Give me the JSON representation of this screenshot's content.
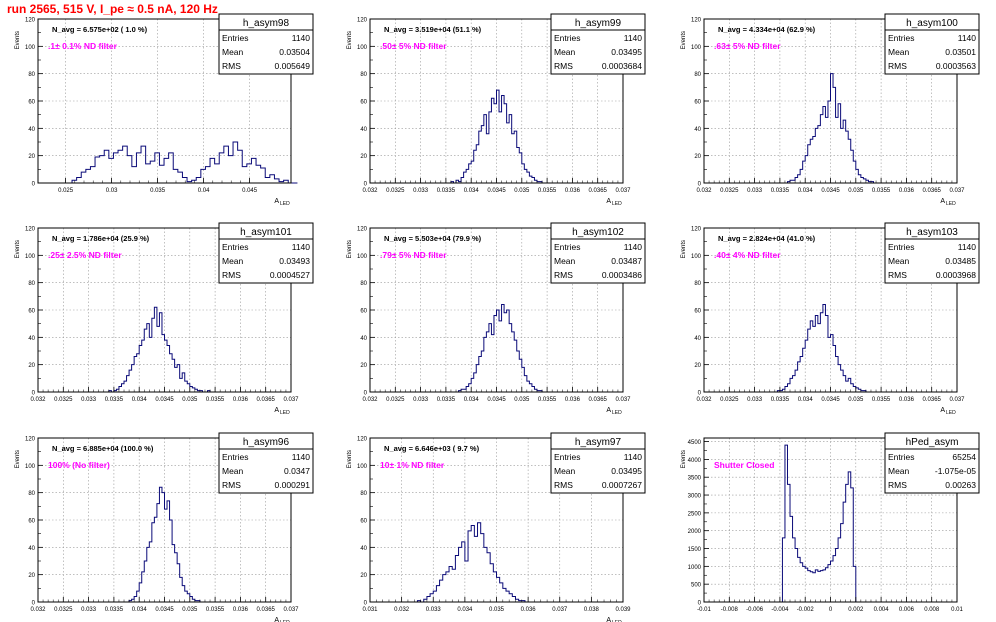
{
  "page_title": "run 2565,   515 V, I_pe ≈ 0.5 nA, 120 Hz",
  "colors": {
    "histogram_line": "#0a0a78",
    "annotation": "#ff00ff",
    "title_red": "#ff0000",
    "grid": "#999999",
    "frame": "#000000"
  },
  "chart_data": [
    {
      "type": "bar",
      "name": "h_asym98",
      "navg": "N_avg = 6.575e+02 ( 1.0 %)",
      "note": ".1± 0.1% ND filter",
      "stats": {
        "entries_label": "Entries",
        "entries": "1140",
        "mean_label": "Mean",
        "mean": "0.03504",
        "rms_label": "RMS",
        "rms": "0.005649"
      },
      "xlabel": "A",
      "xlabel_sub": "LED",
      "ylabel": "Events",
      "xlim": [
        0.022,
        0.0495
      ],
      "ylim": [
        0,
        120
      ],
      "xticks": [
        0.025,
        0.03,
        0.035,
        0.04,
        0.045
      ],
      "xtick_labels": [
        "0.025",
        "0.03",
        "0.035",
        "0.04",
        "0.045"
      ],
      "yticks": [
        0,
        20,
        40,
        60,
        80,
        100,
        120
      ],
      "ytick_labels": [
        "0",
        "20",
        "40",
        "60",
        "80",
        "100",
        "120"
      ],
      "bin_start": 0.0227,
      "bin_width": 0.0005,
      "values": [
        0,
        0,
        0,
        0,
        0,
        0,
        2,
        4,
        8,
        10,
        12,
        19,
        20,
        24,
        18,
        22,
        24,
        27,
        20,
        12,
        22,
        27,
        14,
        16,
        22,
        13,
        18,
        22,
        10,
        8,
        4,
        1,
        2,
        4,
        10,
        12,
        18,
        14,
        22,
        27,
        20,
        30,
        24,
        12,
        14,
        18,
        13,
        11,
        4,
        6,
        3,
        1,
        2,
        0,
        0
      ]
    },
    {
      "type": "bar",
      "name": "h_asym99",
      "navg": "N_avg = 3.519e+04 (51.1 %)",
      "note": ".50± 5% ND filter",
      "stats": {
        "entries_label": "Entries",
        "entries": "1140",
        "mean_label": "Mean",
        "mean": "0.03495",
        "rms_label": "RMS",
        "rms": "0.0003684"
      },
      "xlabel": "A",
      "xlabel_sub": "LED",
      "ylabel": "Events",
      "xlim": [
        0.032,
        0.037
      ],
      "ylim": [
        0,
        120
      ],
      "xticks": [
        0.032,
        0.0325,
        0.033,
        0.0335,
        0.034,
        0.0345,
        0.035,
        0.0355,
        0.036,
        0.0365,
        0.037
      ],
      "xtick_labels": [
        "0.032",
        "0.0325",
        "0.033",
        "0.0335",
        "0.034",
        "0.0345",
        "0.035",
        "0.0355",
        "0.036",
        "0.0365",
        "0.037"
      ],
      "yticks": [
        0,
        20,
        40,
        60,
        80,
        100,
        120
      ],
      "ytick_labels": [
        "0",
        "20",
        "40",
        "60",
        "80",
        "100",
        "120"
      ],
      "bin_start": 0.0336,
      "bin_width": 5e-05,
      "values": [
        1,
        0,
        2,
        1,
        4,
        8,
        10,
        14,
        16,
        24,
        28,
        38,
        42,
        50,
        36,
        52,
        62,
        58,
        68,
        52,
        64,
        58,
        44,
        50,
        36,
        38,
        26,
        22,
        14,
        10,
        8,
        5,
        4,
        2,
        1,
        1,
        0
      ]
    },
    {
      "type": "bar",
      "name": "h_asym100",
      "navg": "N_avg = 4.334e+04 (62.9 %)",
      "note": ".63± 5% ND filter",
      "stats": {
        "entries_label": "Entries",
        "entries": "1140",
        "mean_label": "Mean",
        "mean": "0.03501",
        "rms_label": "RMS",
        "rms": "0.0003563"
      },
      "xlabel": "A",
      "xlabel_sub": "LED",
      "ylabel": "Events",
      "xlim": [
        0.032,
        0.037
      ],
      "ylim": [
        0,
        120
      ],
      "xticks": [
        0.032,
        0.0325,
        0.033,
        0.0335,
        0.034,
        0.0345,
        0.035,
        0.0355,
        0.036,
        0.0365,
        0.037
      ],
      "xtick_labels": [
        "0.032",
        "0.0325",
        "0.033",
        "0.0335",
        "0.034",
        "0.0345",
        "0.035",
        "0.0355",
        "0.036",
        "0.0365",
        "0.037"
      ],
      "yticks": [
        0,
        20,
        40,
        60,
        80,
        100,
        120
      ],
      "ytick_labels": [
        "0",
        "20",
        "40",
        "60",
        "80",
        "100",
        "120"
      ],
      "bin_start": 0.0336,
      "bin_width": 5e-05,
      "values": [
        0,
        1,
        2,
        2,
        4,
        6,
        10,
        16,
        20,
        28,
        32,
        34,
        40,
        42,
        50,
        56,
        48,
        60,
        80,
        70,
        48,
        58,
        40,
        46,
        38,
        32,
        24,
        16,
        10,
        6,
        4,
        3,
        2,
        1,
        1,
        0,
        0
      ]
    },
    {
      "type": "bar",
      "name": "h_asym101",
      "navg": "N_avg = 1.786e+04 (25.9 %)",
      "note": ".25± 2.5% ND filter",
      "stats": {
        "entries_label": "Entries",
        "entries": "1140",
        "mean_label": "Mean",
        "mean": "0.03493",
        "rms_label": "RMS",
        "rms": "0.0004527"
      },
      "xlabel": "A",
      "xlabel_sub": "LED",
      "ylabel": "Events",
      "xlim": [
        0.032,
        0.037
      ],
      "ylim": [
        0,
        120
      ],
      "xticks": [
        0.032,
        0.0325,
        0.033,
        0.0335,
        0.034,
        0.0345,
        0.035,
        0.0355,
        0.036,
        0.0365,
        0.037
      ],
      "xtick_labels": [
        "0.032",
        "0.0325",
        "0.033",
        "0.0335",
        "0.034",
        "0.0345",
        "0.035",
        "0.0355",
        "0.036",
        "0.0365",
        "0.037"
      ],
      "yticks": [
        0,
        20,
        40,
        60,
        80,
        100,
        120
      ],
      "ytick_labels": [
        "0",
        "20",
        "40",
        "60",
        "80",
        "100",
        "120"
      ],
      "bin_start": 0.0334,
      "bin_width": 5e-05,
      "values": [
        1,
        0,
        1,
        2,
        4,
        6,
        8,
        12,
        16,
        20,
        26,
        28,
        34,
        38,
        46,
        50,
        40,
        54,
        62,
        48,
        58,
        42,
        38,
        34,
        28,
        24,
        18,
        20,
        10,
        14,
        8,
        6,
        4,
        3,
        2,
        1,
        1,
        0,
        0,
        1,
        0
      ]
    },
    {
      "type": "bar",
      "name": "h_asym102",
      "navg": "N_avg = 5.503e+04 (79.9 %)",
      "note": ".79± 5% ND filter",
      "stats": {
        "entries_label": "Entries",
        "entries": "1140",
        "mean_label": "Mean",
        "mean": "0.03487",
        "rms_label": "RMS",
        "rms": "0.0003486"
      },
      "xlabel": "A",
      "xlabel_sub": "LED",
      "ylabel": "Events",
      "xlim": [
        0.032,
        0.037
      ],
      "ylim": [
        0,
        120
      ],
      "xticks": [
        0.032,
        0.0325,
        0.033,
        0.0335,
        0.034,
        0.0345,
        0.035,
        0.0355,
        0.036,
        0.0365,
        0.037
      ],
      "xtick_labels": [
        "0.032",
        "0.0325",
        "0.033",
        "0.0335",
        "0.034",
        "0.0345",
        "0.035",
        "0.0355",
        "0.036",
        "0.0365",
        "0.037"
      ],
      "yticks": [
        0,
        20,
        40,
        60,
        80,
        100,
        120
      ],
      "ytick_labels": [
        "0",
        "20",
        "40",
        "60",
        "80",
        "100",
        "120"
      ],
      "bin_start": 0.0337,
      "bin_width": 5e-05,
      "values": [
        0,
        1,
        2,
        2,
        4,
        6,
        10,
        14,
        20,
        26,
        30,
        40,
        44,
        50,
        42,
        56,
        60,
        52,
        64,
        58,
        60,
        50,
        44,
        38,
        30,
        24,
        18,
        12,
        8,
        6,
        4,
        2,
        1,
        1,
        0,
        0
      ]
    },
    {
      "type": "bar",
      "name": "h_asym103",
      "navg": "N_avg = 2.824e+04 (41.0 %)",
      "note": ".40± 4% ND filter",
      "stats": {
        "entries_label": "Entries",
        "entries": "1140",
        "mean_label": "Mean",
        "mean": "0.03485",
        "rms_label": "RMS",
        "rms": "0.0003968"
      },
      "xlabel": "A",
      "xlabel_sub": "LED",
      "ylabel": "Events",
      "xlim": [
        0.032,
        0.037
      ],
      "ylim": [
        0,
        120
      ],
      "xticks": [
        0.032,
        0.0325,
        0.033,
        0.0335,
        0.034,
        0.0345,
        0.035,
        0.0355,
        0.036,
        0.0365,
        0.037
      ],
      "xtick_labels": [
        "0.032",
        "0.0325",
        "0.033",
        "0.0335",
        "0.034",
        "0.0345",
        "0.035",
        "0.0355",
        "0.036",
        "0.0365",
        "0.037"
      ],
      "yticks": [
        0,
        20,
        40,
        60,
        80,
        100,
        120
      ],
      "ytick_labels": [
        "0",
        "20",
        "40",
        "60",
        "80",
        "100",
        "120"
      ],
      "bin_start": 0.0334,
      "bin_width": 5e-05,
      "values": [
        0,
        1,
        1,
        2,
        4,
        6,
        10,
        12,
        16,
        22,
        26,
        32,
        38,
        46,
        52,
        48,
        56,
        50,
        58,
        64,
        56,
        40,
        42,
        34,
        26,
        20,
        16,
        12,
        8,
        10,
        6,
        4,
        3,
        2,
        1,
        1,
        0
      ]
    },
    {
      "type": "bar",
      "name": "h_asym96",
      "navg": "N_avg = 6.885e+04 (100.0 %)",
      "note": "100% (No filter)",
      "stats": {
        "entries_label": "Entries",
        "entries": "1140",
        "mean_label": "Mean",
        "mean": "0.0347",
        "rms_label": "RMS",
        "rms": "0.000291"
      },
      "xlabel": "A",
      "xlabel_sub": "LED",
      "ylabel": "Events",
      "xlim": [
        0.032,
        0.037
      ],
      "ylim": [
        0,
        120
      ],
      "xticks": [
        0.032,
        0.0325,
        0.033,
        0.0335,
        0.034,
        0.0345,
        0.035,
        0.0355,
        0.036,
        0.0365,
        0.037
      ],
      "xtick_labels": [
        "0.032",
        "0.0325",
        "0.033",
        "0.0335",
        "0.034",
        "0.0345",
        "0.035",
        "0.0355",
        "0.036",
        "0.0365",
        "0.037"
      ],
      "yticks": [
        0,
        20,
        40,
        60,
        80,
        100,
        120
      ],
      "ytick_labels": [
        "0",
        "20",
        "40",
        "60",
        "80",
        "100",
        "120"
      ],
      "bin_start": 0.0338,
      "bin_width": 5e-05,
      "values": [
        1,
        2,
        4,
        8,
        14,
        22,
        30,
        40,
        44,
        58,
        62,
        72,
        84,
        80,
        68,
        74,
        60,
        42,
        36,
        28,
        18,
        12,
        8,
        6,
        4,
        2,
        1,
        1,
        0
      ]
    },
    {
      "type": "bar",
      "name": "h_asym97",
      "navg": "N_avg = 6.646e+03 ( 9.7 %)",
      "note": "10± 1% ND filter",
      "stats": {
        "entries_label": "Entries",
        "entries": "1140",
        "mean_label": "Mean",
        "mean": "0.03495",
        "rms_label": "RMS",
        "rms": "0.0007267"
      },
      "xlabel": "A",
      "xlabel_sub": "LED",
      "ylabel": "Events",
      "xlim": [
        0.031,
        0.039
      ],
      "ylim": [
        0,
        120
      ],
      "xticks": [
        0.031,
        0.032,
        0.033,
        0.034,
        0.035,
        0.036,
        0.037,
        0.038,
        0.039
      ],
      "xtick_labels": [
        "0.031",
        "0.032",
        "0.033",
        "0.034",
        "0.035",
        "0.036",
        "0.037",
        "0.038",
        "0.039"
      ],
      "yticks": [
        0,
        20,
        40,
        60,
        80,
        100,
        120
      ],
      "ytick_labels": [
        "0",
        "20",
        "40",
        "60",
        "80",
        "100",
        "120"
      ],
      "bin_start": 0.0325,
      "bin_width": 0.0001,
      "values": [
        1,
        0,
        2,
        4,
        6,
        8,
        12,
        16,
        20,
        22,
        26,
        24,
        34,
        40,
        44,
        30,
        52,
        56,
        48,
        58,
        50,
        40,
        36,
        28,
        22,
        18,
        14,
        10,
        8,
        6,
        4,
        2,
        1,
        1,
        0
      ]
    },
    {
      "type": "bar",
      "name": "hPed_asym",
      "navg": "",
      "note": "Shutter Closed",
      "stats": {
        "entries_label": "Entries",
        "entries": "65254",
        "mean_label": "Mean",
        "mean": "-1.075e-05",
        "rms_label": "RMS",
        "rms": "0.00263"
      },
      "xlabel": "",
      "xlabel_sub": "",
      "ylabel": "Events",
      "xlim": [
        -0.01,
        0.01
      ],
      "ylim": [
        0,
        4600
      ],
      "xticks": [
        -0.01,
        -0.008,
        -0.006,
        -0.004,
        -0.002,
        0,
        0.002,
        0.004,
        0.006,
        0.008,
        0.01
      ],
      "xtick_labels": [
        "-0.01",
        "-0.008",
        "-0.006",
        "-0.004",
        "-0.002",
        "0",
        "0.002",
        "0.004",
        "0.006",
        "0.008",
        "0.01"
      ],
      "yticks": [
        0,
        500,
        1000,
        1500,
        2000,
        2500,
        3000,
        3500,
        4000,
        4500
      ],
      "ytick_labels": [
        "0",
        "500",
        "1000",
        "1500",
        "2000",
        "2500",
        "3000",
        "3500",
        "4000",
        "4500"
      ],
      "bin_start": -0.004,
      "bin_width": 0.0002,
      "values": [
        0,
        1800,
        4400,
        3300,
        2400,
        1800,
        1500,
        1250,
        1100,
        1000,
        950,
        880,
        850,
        820,
        900,
        860,
        880,
        900,
        960,
        1050,
        1150,
        1300,
        1500,
        1800,
        2200,
        2800,
        3300,
        3650,
        3200,
        1000,
        0
      ]
    }
  ]
}
